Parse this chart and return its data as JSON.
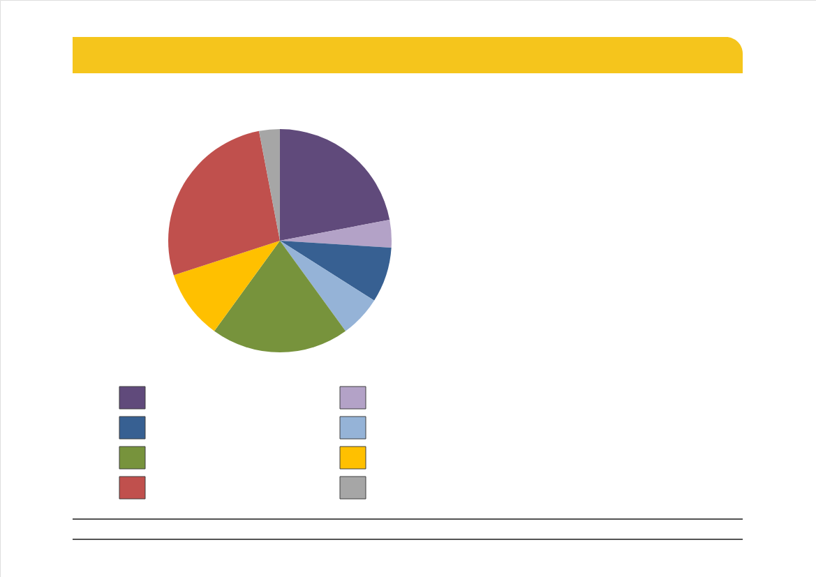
{
  "chart_data": {
    "type": "pie",
    "categories": [
      null,
      null,
      null,
      null,
      null,
      null,
      null,
      null
    ],
    "values": [
      22,
      4,
      8,
      6,
      20,
      10,
      27,
      3
    ],
    "colors": [
      "#604a7b",
      "#b3a2c7",
      "#376092",
      "#95b3d7",
      "#77933c",
      "#ffc000",
      "#c0504d",
      "#a6a6a6"
    ]
  }
}
